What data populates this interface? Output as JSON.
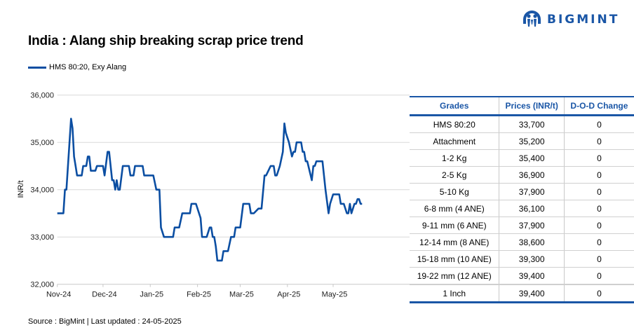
{
  "title": "India : Alang ship breaking scrap price trend",
  "source": "Source : BigMint | Last updated : 24-05-2025",
  "logo": {
    "text": "BIGMINT",
    "color": "#1a56a6"
  },
  "table": {
    "headers": [
      "Grades",
      "Prices (INR/t)",
      "D-O-D Change"
    ],
    "rows": [
      [
        "HMS 80:20",
        "33,700",
        "0"
      ],
      [
        "Attachment",
        "35,200",
        "0"
      ],
      [
        "1-2 Kg",
        "35,400",
        "0"
      ],
      [
        "2-5 Kg",
        "36,900",
        "0"
      ],
      [
        "5-10 Kg",
        "37,900",
        "0"
      ],
      [
        "6-8 mm (4 ANE)",
        "36,100",
        "0"
      ],
      [
        "9-11 mm (6 ANE)",
        "37,900",
        "0"
      ],
      [
        "12-14 mm (8 ANE)",
        "38,600",
        "0"
      ],
      [
        "15-18 mm (10 ANE)",
        "39,300",
        "0"
      ],
      [
        "19-22 mm (12 ANE)",
        "39,400",
        "0"
      ],
      [
        "1 Inch",
        "39,400",
        "0"
      ]
    ]
  },
  "chart_data": {
    "type": "line",
    "title": "India : Alang ship breaking scrap price trend",
    "ylabel": "INR/t",
    "xlabel": "",
    "ylim": [
      32000,
      36000
    ],
    "yticks": [
      32000,
      33000,
      34000,
      35000,
      36000
    ],
    "ytick_labels": [
      "32,000",
      "33,000",
      "34,000",
      "35,000",
      "36,000"
    ],
    "xticks": [
      "2024-11-01",
      "2024-12-01",
      "2025-01-01",
      "2025-02-01",
      "2025-03-01",
      "2025-04-01",
      "2025-05-01"
    ],
    "xtick_labels": [
      "Nov-24",
      "Dec-24",
      "Jan-25",
      "Feb-25",
      "Mar-25",
      "Apr-25",
      "May-25"
    ],
    "grid": "horizontal",
    "legend_position": "top-left",
    "series": [
      {
        "name": "HMS 80:20, Exy Alang",
        "color": "#0b4ea2",
        "points": [
          [
            "2024-11-01",
            33500
          ],
          [
            "2024-11-05",
            33500
          ],
          [
            "2024-11-06",
            34000
          ],
          [
            "2024-11-07",
            34000
          ],
          [
            "2024-11-09",
            35000
          ],
          [
            "2024-11-10",
            35500
          ],
          [
            "2024-11-11",
            35300
          ],
          [
            "2024-11-12",
            34700
          ],
          [
            "2024-11-13",
            34500
          ],
          [
            "2024-11-14",
            34300
          ],
          [
            "2024-11-17",
            34300
          ],
          [
            "2024-11-18",
            34500
          ],
          [
            "2024-11-20",
            34500
          ],
          [
            "2024-11-21",
            34700
          ],
          [
            "2024-11-22",
            34700
          ],
          [
            "2024-11-23",
            34400
          ],
          [
            "2024-11-26",
            34400
          ],
          [
            "2024-11-27",
            34500
          ],
          [
            "2024-12-01",
            34500
          ],
          [
            "2024-12-02",
            34300
          ],
          [
            "2024-12-04",
            34800
          ],
          [
            "2024-12-05",
            34800
          ],
          [
            "2024-12-07",
            34200
          ],
          [
            "2024-12-08",
            34200
          ],
          [
            "2024-12-09",
            34000
          ],
          [
            "2024-12-10",
            34200
          ],
          [
            "2024-12-11",
            34000
          ],
          [
            "2024-12-12",
            34000
          ],
          [
            "2024-12-14",
            34500
          ],
          [
            "2024-12-18",
            34500
          ],
          [
            "2024-12-19",
            34300
          ],
          [
            "2024-12-21",
            34300
          ],
          [
            "2024-12-22",
            34500
          ],
          [
            "2024-12-27",
            34500
          ],
          [
            "2024-12-28",
            34300
          ],
          [
            "2025-01-03",
            34300
          ],
          [
            "2025-01-05",
            34000
          ],
          [
            "2025-01-07",
            34000
          ],
          [
            "2025-01-08",
            33200
          ],
          [
            "2025-01-10",
            33000
          ],
          [
            "2025-01-16",
            33000
          ],
          [
            "2025-01-17",
            33200
          ],
          [
            "2025-01-20",
            33200
          ],
          [
            "2025-01-22",
            33500
          ],
          [
            "2025-01-27",
            33500
          ],
          [
            "2025-01-28",
            33700
          ],
          [
            "2025-01-31",
            33700
          ],
          [
            "2025-02-03",
            33400
          ],
          [
            "2025-02-04",
            33000
          ],
          [
            "2025-02-07",
            33000
          ],
          [
            "2025-02-09",
            33200
          ],
          [
            "2025-02-10",
            33200
          ],
          [
            "2025-02-11",
            33000
          ],
          [
            "2025-02-12",
            33000
          ],
          [
            "2025-02-13",
            32800
          ],
          [
            "2025-02-14",
            32500
          ],
          [
            "2025-02-17",
            32500
          ],
          [
            "2025-02-18",
            32700
          ],
          [
            "2025-02-21",
            32700
          ],
          [
            "2025-02-23",
            33000
          ],
          [
            "2025-02-25",
            33000
          ],
          [
            "2025-02-26",
            33200
          ],
          [
            "2025-03-01",
            33200
          ],
          [
            "2025-03-03",
            33700
          ],
          [
            "2025-03-07",
            33700
          ],
          [
            "2025-03-08",
            33500
          ],
          [
            "2025-03-10",
            33500
          ],
          [
            "2025-03-13",
            33600
          ],
          [
            "2025-03-15",
            33600
          ],
          [
            "2025-03-17",
            34300
          ],
          [
            "2025-03-18",
            34300
          ],
          [
            "2025-03-21",
            34500
          ],
          [
            "2025-03-23",
            34500
          ],
          [
            "2025-03-24",
            34300
          ],
          [
            "2025-03-25",
            34300
          ],
          [
            "2025-03-27",
            34500
          ],
          [
            "2025-03-29",
            34800
          ],
          [
            "2025-03-30",
            35400
          ],
          [
            "2025-03-31",
            35200
          ],
          [
            "2025-04-02",
            35000
          ],
          [
            "2025-04-04",
            34700
          ],
          [
            "2025-04-05",
            34800
          ],
          [
            "2025-04-06",
            34800
          ],
          [
            "2025-04-07",
            35000
          ],
          [
            "2025-04-10",
            35000
          ],
          [
            "2025-04-11",
            34800
          ],
          [
            "2025-04-12",
            34800
          ],
          [
            "2025-04-13",
            34600
          ],
          [
            "2025-04-14",
            34600
          ],
          [
            "2025-04-17",
            34200
          ],
          [
            "2025-04-18",
            34500
          ],
          [
            "2025-04-19",
            34500
          ],
          [
            "2025-04-20",
            34600
          ],
          [
            "2025-04-24",
            34600
          ],
          [
            "2025-04-26",
            34000
          ],
          [
            "2025-04-28",
            33500
          ],
          [
            "2025-04-29",
            33700
          ],
          [
            "2025-05-01",
            33900
          ],
          [
            "2025-05-05",
            33900
          ],
          [
            "2025-05-06",
            33700
          ],
          [
            "2025-05-08",
            33700
          ],
          [
            "2025-05-10",
            33500
          ],
          [
            "2025-05-11",
            33500
          ],
          [
            "2025-05-12",
            33700
          ],
          [
            "2025-05-13",
            33500
          ],
          [
            "2025-05-15",
            33700
          ],
          [
            "2025-05-16",
            33700
          ],
          [
            "2025-05-17",
            33800
          ],
          [
            "2025-05-18",
            33800
          ],
          [
            "2025-05-19",
            33700
          ],
          [
            "2025-05-20",
            33700
          ]
        ]
      }
    ]
  }
}
